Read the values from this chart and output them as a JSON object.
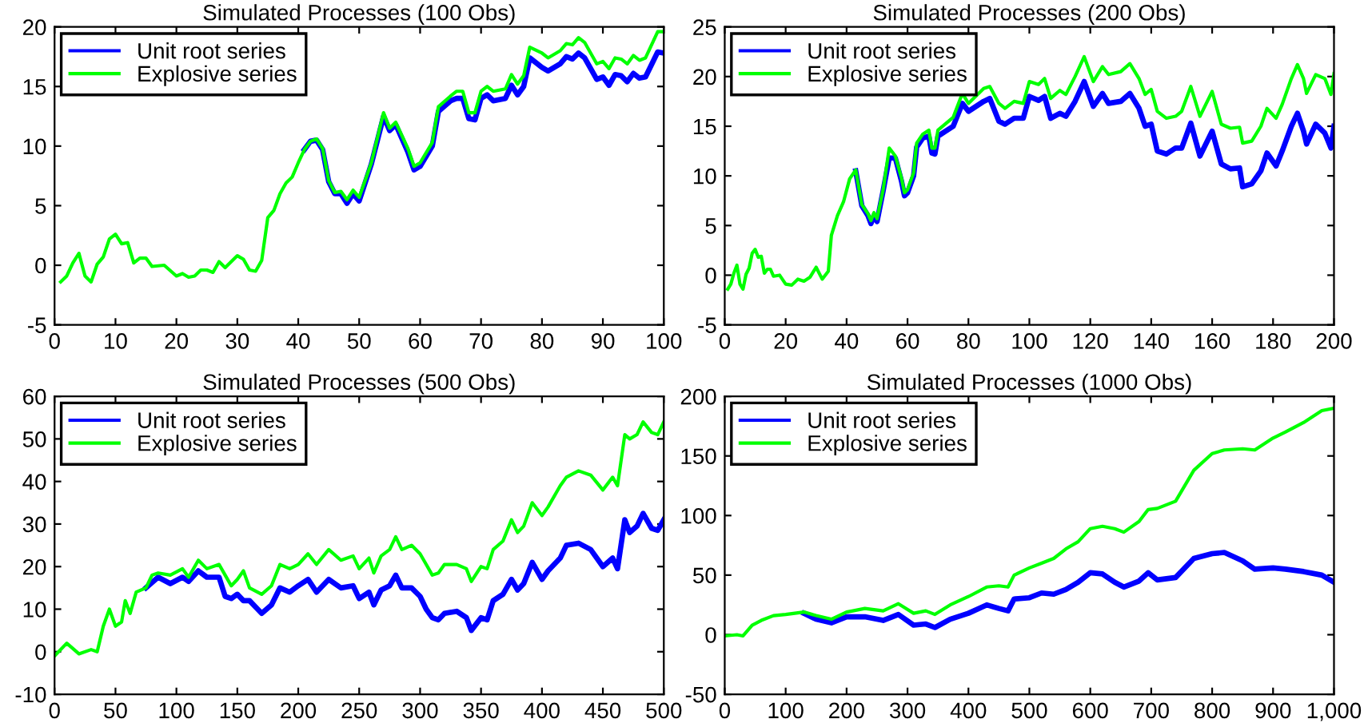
{
  "chart_data": [
    {
      "type": "line",
      "title": "Simulated Processes (100 Obs)",
      "xlim": [
        0,
        100
      ],
      "ylim": [
        -5,
        20
      ],
      "xticks": [
        0,
        10,
        20,
        30,
        40,
        50,
        60,
        70,
        80,
        90,
        100
      ],
      "yticks": [
        -5,
        0,
        5,
        10,
        15,
        20
      ],
      "grid": false,
      "legend": "top left",
      "marker": "none",
      "line_style": "solid",
      "series": [
        {
          "name": "Unit root series",
          "color": "#0000ff",
          "x": [
            41,
            42,
            43,
            44,
            45,
            46,
            47,
            48,
            49,
            50,
            52,
            54,
            55,
            56,
            58,
            59,
            60,
            62,
            63,
            65,
            66,
            67,
            68,
            69,
            70,
            71,
            72,
            74,
            75,
            76,
            77,
            78,
            80,
            81,
            83,
            84,
            85,
            86,
            87,
            89,
            90,
            91,
            92,
            93,
            94,
            95,
            96,
            97,
            99,
            100
          ],
          "values": [
            9.7,
            10.4,
            10.5,
            9.7,
            7.0,
            6.0,
            6.0,
            5.2,
            6.0,
            5.4,
            8.5,
            12.5,
            11.3,
            11.8,
            9.5,
            8.0,
            8.3,
            10.0,
            12.9,
            13.8,
            14.0,
            14.0,
            12.3,
            12.2,
            14.0,
            14.3,
            13.8,
            14.0,
            15.1,
            14.3,
            15.0,
            17.4,
            16.6,
            16.3,
            16.9,
            17.5,
            17.3,
            17.8,
            17.4,
            15.6,
            15.8,
            15.1,
            16.0,
            15.9,
            15.4,
            16.1,
            15.7,
            15.8,
            17.9,
            17.8
          ]
        },
        {
          "name": "Explosive series",
          "color": "#00ff00",
          "x": [
            1,
            2,
            3,
            4,
            5,
            6,
            7,
            8,
            9,
            10,
            11,
            12,
            13,
            14,
            15,
            16,
            18,
            20,
            21,
            22,
            23,
            24,
            25,
            26,
            27,
            28,
            30,
            31,
            32,
            33,
            34,
            35,
            36,
            37,
            38,
            39,
            40,
            41,
            42,
            43,
            44,
            45,
            46,
            47,
            48,
            49,
            50,
            52,
            54,
            55,
            56,
            58,
            59,
            60,
            62,
            63,
            65,
            66,
            67,
            68,
            69,
            70,
            71,
            72,
            74,
            75,
            76,
            77,
            78,
            80,
            81,
            83,
            84,
            85,
            86,
            87,
            89,
            90,
            91,
            92,
            93,
            94,
            95,
            96,
            97,
            99,
            100
          ],
          "values": [
            -1.4,
            -0.9,
            0.2,
            1.0,
            -0.9,
            -1.4,
            0.1,
            0.7,
            2.2,
            2.6,
            1.8,
            1.9,
            0.2,
            0.6,
            0.6,
            -0.1,
            0.0,
            -0.9,
            -0.7,
            -1.0,
            -0.9,
            -0.4,
            -0.4,
            -0.6,
            0.3,
            -0.2,
            0.8,
            0.5,
            -0.4,
            -0.5,
            0.4,
            4.0,
            4.6,
            6.0,
            6.9,
            7.4,
            8.6,
            9.7,
            10.4,
            10.6,
            9.8,
            7.1,
            6.1,
            6.2,
            5.5,
            6.3,
            5.7,
            8.6,
            12.8,
            11.5,
            12.0,
            9.8,
            8.3,
            8.6,
            10.3,
            13.3,
            14.2,
            14.6,
            14.6,
            12.8,
            12.8,
            14.6,
            15.0,
            14.6,
            14.8,
            16.0,
            15.2,
            15.9,
            18.3,
            17.8,
            17.4,
            18.0,
            18.6,
            18.5,
            19.1,
            18.7,
            16.9,
            17.1,
            16.5,
            17.4,
            17.3,
            16.9,
            17.6,
            17.2,
            17.4,
            19.6,
            19.6
          ]
        }
      ]
    },
    {
      "type": "line",
      "title": "Simulated Processes (200 Obs)",
      "xlim": [
        0,
        200
      ],
      "ylim": [
        -5,
        25
      ],
      "xticks": [
        0,
        20,
        40,
        60,
        80,
        100,
        120,
        140,
        160,
        180,
        200
      ],
      "yticks": [
        -5,
        0,
        5,
        10,
        15,
        20,
        25
      ],
      "grid": false,
      "legend": "top left",
      "marker": "none",
      "line_style": "solid",
      "series": [
        {
          "name": "Unit root series",
          "color": "#0000ff",
          "x": [
            43,
            45,
            47,
            48,
            49,
            50,
            52,
            54,
            56,
            58,
            59,
            60,
            62,
            63,
            65,
            67,
            68,
            69,
            70,
            75,
            78,
            80,
            85,
            87,
            90,
            92,
            95,
            98,
            100,
            103,
            105,
            107,
            110,
            112,
            115,
            118,
            121,
            124,
            126,
            130,
            133,
            136,
            138,
            140,
            142,
            145,
            148,
            150,
            153,
            156,
            160,
            163,
            166,
            169,
            170,
            173,
            176,
            178,
            181,
            183,
            186,
            188,
            190,
            191,
            194,
            197,
            199,
            200
          ],
          "values": [
            10.5,
            7.0,
            6.0,
            5.2,
            6.0,
            5.4,
            8.5,
            11.8,
            11.8,
            9.5,
            8.0,
            8.3,
            10.0,
            12.9,
            13.8,
            14.0,
            12.3,
            12.2,
            14.0,
            15.0,
            17.3,
            16.5,
            17.5,
            17.8,
            15.5,
            15.2,
            15.8,
            15.8,
            18.0,
            17.6,
            18.0,
            15.8,
            16.3,
            16.0,
            17.5,
            19.5,
            17.0,
            18.3,
            17.3,
            17.5,
            18.3,
            16.8,
            15.0,
            15.2,
            12.5,
            12.2,
            12.8,
            12.8,
            15.3,
            12.0,
            14.5,
            11.2,
            10.7,
            10.8,
            8.9,
            9.2,
            10.5,
            12.3,
            11.0,
            12.5,
            15.0,
            16.3,
            14.5,
            13.2,
            15.2,
            14.3,
            12.8,
            15.0
          ]
        },
        {
          "name": "Explosive series",
          "color": "#00ff00",
          "x": [
            1,
            2,
            3,
            4,
            5,
            6,
            7,
            8,
            9,
            10,
            11,
            12,
            13,
            14,
            15,
            16,
            18,
            20,
            22,
            24,
            26,
            28,
            30,
            32,
            34,
            35,
            37,
            39,
            41,
            43,
            45,
            47,
            48,
            49,
            50,
            52,
            54,
            56,
            58,
            59,
            60,
            62,
            63,
            65,
            67,
            68,
            69,
            70,
            75,
            78,
            80,
            85,
            87,
            90,
            92,
            95,
            98,
            100,
            103,
            105,
            107,
            110,
            112,
            115,
            118,
            121,
            124,
            126,
            130,
            133,
            136,
            138,
            140,
            142,
            145,
            148,
            150,
            153,
            156,
            160,
            163,
            166,
            169,
            170,
            173,
            176,
            178,
            181,
            183,
            186,
            188,
            190,
            191,
            194,
            197,
            199,
            200
          ],
          "values": [
            -1.4,
            -0.9,
            0.2,
            1.0,
            -0.9,
            -1.4,
            0.1,
            0.7,
            2.2,
            2.6,
            1.8,
            1.9,
            0.2,
            0.6,
            0.6,
            -0.1,
            0.0,
            -0.9,
            -1.0,
            -0.4,
            -0.6,
            -0.2,
            0.8,
            -0.4,
            0.4,
            4.0,
            6.0,
            7.4,
            9.7,
            10.6,
            7.1,
            6.2,
            5.5,
            6.3,
            5.7,
            8.6,
            12.8,
            12.0,
            9.8,
            8.3,
            8.6,
            10.3,
            13.3,
            14.2,
            14.6,
            12.8,
            12.8,
            14.6,
            15.9,
            18.3,
            17.3,
            18.8,
            19.0,
            17.3,
            16.8,
            17.5,
            17.3,
            19.5,
            19.2,
            19.8,
            17.8,
            18.6,
            18.2,
            20.0,
            22.0,
            19.5,
            21.0,
            20.2,
            20.5,
            21.3,
            19.8,
            18.2,
            18.7,
            16.5,
            15.8,
            16.0,
            16.5,
            19.0,
            16.0,
            18.5,
            15.2,
            14.8,
            14.9,
            13.3,
            13.5,
            15.0,
            16.8,
            15.8,
            17.2,
            19.8,
            21.2,
            19.8,
            18.3,
            20.2,
            19.8,
            18.2,
            20.3
          ]
        }
      ]
    },
    {
      "type": "line",
      "title": "Simulated Processes (500 Obs)",
      "xlim": [
        0,
        500
      ],
      "ylim": [
        -10,
        60
      ],
      "xticks": [
        0,
        50,
        100,
        150,
        200,
        250,
        300,
        350,
        400,
        450,
        500
      ],
      "yticks": [
        -10,
        0,
        10,
        20,
        30,
        40,
        50,
        60
      ],
      "grid": false,
      "legend": "top left",
      "marker": "none",
      "line_style": "solid",
      "series": [
        {
          "name": "Unit root series",
          "color": "#0000ff",
          "x": [
            75,
            85,
            95,
            105,
            110,
            118,
            125,
            135,
            140,
            145,
            150,
            155,
            160,
            170,
            178,
            185,
            193,
            200,
            208,
            215,
            225,
            235,
            245,
            250,
            258,
            262,
            268,
            275,
            280,
            285,
            293,
            300,
            305,
            310,
            315,
            320,
            330,
            338,
            342,
            350,
            355,
            360,
            368,
            375,
            380,
            385,
            392,
            400,
            405,
            415,
            420,
            430,
            440,
            450,
            458,
            462,
            468,
            472,
            478,
            483,
            490,
            495,
            500
          ],
          "values": [
            15,
            17.5,
            16,
            17.5,
            16.5,
            19,
            17.5,
            17.5,
            13,
            12.5,
            13.5,
            12,
            12,
            9,
            11,
            15,
            14,
            15.5,
            17,
            14,
            17,
            15,
            15.5,
            12.5,
            14,
            11,
            14.5,
            15.5,
            18,
            15,
            15,
            13,
            10,
            8,
            7.5,
            9,
            9.5,
            8,
            5,
            8,
            7.5,
            12,
            13.5,
            17,
            14.5,
            16,
            21,
            17,
            19,
            22,
            25,
            25.5,
            24,
            20,
            22,
            19.5,
            31,
            28,
            29.5,
            32.5,
            29,
            28.5,
            31
          ]
        },
        {
          "name": "Explosive series",
          "color": "#00ff00",
          "x": [
            0,
            10,
            20,
            30,
            35,
            40,
            45,
            50,
            55,
            58,
            62,
            67,
            75,
            80,
            85,
            95,
            105,
            110,
            118,
            125,
            135,
            140,
            145,
            150,
            155,
            160,
            170,
            178,
            185,
            193,
            200,
            208,
            215,
            225,
            235,
            245,
            250,
            258,
            262,
            268,
            275,
            280,
            285,
            293,
            300,
            305,
            310,
            315,
            320,
            330,
            338,
            342,
            350,
            355,
            360,
            368,
            375,
            380,
            385,
            392,
            400,
            405,
            415,
            420,
            430,
            440,
            450,
            458,
            462,
            468,
            472,
            478,
            483,
            490,
            495,
            500
          ],
          "values": [
            -1,
            2,
            -0.5,
            0.5,
            0,
            6,
            10,
            6,
            7,
            12,
            9,
            14,
            15,
            18,
            18.5,
            18,
            19.5,
            17.5,
            21.5,
            19.5,
            20.5,
            18,
            15.5,
            17,
            19,
            15,
            13.5,
            15.5,
            20.5,
            19.5,
            20.5,
            23,
            20.5,
            24,
            21.5,
            22.5,
            19.5,
            22,
            18.5,
            22.5,
            24,
            27,
            24,
            25,
            23,
            20.5,
            18,
            18.5,
            20.5,
            20.5,
            19.5,
            16.5,
            20,
            19.5,
            24,
            26,
            31,
            28,
            29.5,
            35,
            32,
            34,
            39,
            41,
            42.5,
            41.5,
            38,
            41,
            39,
            51,
            50,
            51,
            54,
            51.5,
            51,
            54
          ]
        }
      ]
    },
    {
      "type": "line",
      "title": "Simulated Processes (1000 Obs)",
      "xlim": [
        0,
        1000
      ],
      "ylim": [
        -50,
        200
      ],
      "xticks": [
        0,
        100,
        200,
        300,
        400,
        500,
        600,
        700,
        800,
        900,
        {
          "value": 1000,
          "label": "1,000"
        }
      ],
      "yticks": [
        -50,
        0,
        50,
        100,
        150,
        200
      ],
      "grid": false,
      "legend": "top left",
      "marker": "none",
      "line_style": "solid",
      "series": [
        {
          "name": "Unit root series",
          "color": "#0000ff",
          "x": [
            130,
            150,
            175,
            200,
            230,
            260,
            285,
            310,
            330,
            345,
            370,
            400,
            430,
            450,
            465,
            475,
            500,
            520,
            540,
            560,
            580,
            600,
            620,
            640,
            655,
            680,
            695,
            710,
            740,
            770,
            800,
            820,
            850,
            870,
            900,
            920,
            950,
            980,
            1000
          ],
          "values": [
            18,
            13,
            10,
            15,
            15,
            12,
            17,
            8,
            9,
            6,
            13,
            18,
            25,
            22,
            20,
            30,
            31,
            35,
            34,
            38,
            44,
            52,
            51,
            44,
            40,
            45,
            52,
            46,
            48,
            64,
            68,
            69,
            62,
            55,
            56,
            55,
            53,
            50,
            44
          ]
        },
        {
          "name": "Explosive series",
          "color": "#00ff00",
          "x": [
            0,
            20,
            30,
            45,
            60,
            80,
            100,
            130,
            150,
            175,
            200,
            230,
            260,
            285,
            310,
            330,
            345,
            370,
            400,
            430,
            450,
            465,
            475,
            500,
            520,
            540,
            560,
            580,
            600,
            620,
            640,
            655,
            680,
            695,
            710,
            740,
            770,
            800,
            820,
            850,
            870,
            900,
            920,
            950,
            980,
            1000
          ],
          "values": [
            -1,
            0,
            -1,
            8,
            12,
            16,
            17,
            19,
            16,
            13,
            19,
            22,
            20,
            26,
            18,
            20,
            17,
            25,
            32,
            40,
            41,
            40,
            50,
            56,
            60,
            64,
            72,
            78,
            89,
            91,
            89,
            86,
            95,
            105,
            106,
            112,
            138,
            152,
            155,
            156,
            155,
            165,
            170,
            178,
            188,
            190
          ]
        }
      ]
    }
  ]
}
